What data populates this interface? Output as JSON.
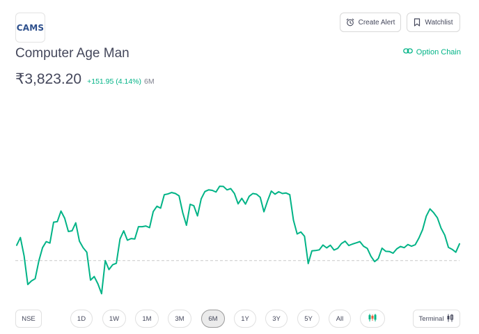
{
  "stock": {
    "logo_text": "CAMS",
    "name": "Computer Age Man",
    "price": "₹3,823.20",
    "change": "+151.95 (4.14%)",
    "period": "6M"
  },
  "header": {
    "create_alert": "Create Alert",
    "watchlist": "Watchlist",
    "option_chain": "Option Chain"
  },
  "controls": {
    "exchange": "NSE",
    "timeframes": [
      "1D",
      "1W",
      "1M",
      "3M",
      "6M",
      "1Y",
      "3Y",
      "5Y",
      "All"
    ],
    "active_timeframe": "6M",
    "terminal": "Terminal"
  },
  "colors": {
    "line": "#00b386",
    "accent": "#00b386",
    "baseline": "#c8c8c8",
    "text": "#44475b"
  },
  "chart_data": {
    "type": "line",
    "title": "",
    "xlabel": "",
    "ylabel": "",
    "grid": false,
    "baseline_value": 3671.25,
    "ylim": [
      3520,
      4290
    ],
    "values": [
      3735,
      3767,
      3691,
      3572,
      3587,
      3596,
      3670,
      3725,
      3750,
      3744,
      3831,
      3833,
      3877,
      3847,
      3792,
      3795,
      3828,
      3752,
      3725,
      3706,
      3590,
      3605,
      3575,
      3534,
      3671,
      3634,
      3654,
      3660,
      3761,
      3795,
      3756,
      3763,
      3761,
      3812,
      3812,
      3815,
      3808,
      3875,
      3897,
      3889,
      3945,
      3948,
      3954,
      3950,
      3940,
      3870,
      3818,
      3905,
      3899,
      3857,
      3928,
      3958,
      3965,
      3963,
      3956,
      3980,
      3979,
      3965,
      3970,
      3950,
      3907,
      3930,
      3906,
      3938,
      3950,
      3947,
      3934,
      3874,
      3920,
      3960,
      3947,
      3957,
      3950,
      3952,
      3945,
      3839,
      3782,
      3790,
      3772,
      3659,
      3712,
      3713,
      3716,
      3736,
      3724,
      3735,
      3715,
      3722,
      3742,
      3752,
      3734,
      3740,
      3745,
      3750,
      3731,
      3722,
      3689,
      3667,
      3680,
      3723,
      3710,
      3709,
      3702,
      3720,
      3730,
      3725,
      3738,
      3731,
      3737,
      3765,
      3800,
      3856,
      3886,
      3870,
      3849,
      3806,
      3777,
      3726,
      3718,
      3706,
      3741
    ]
  }
}
